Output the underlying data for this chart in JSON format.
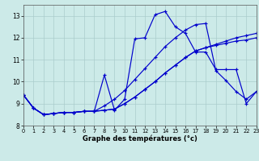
{
  "xlabel": "Graphe des températures (°c)",
  "background_color": "#cceae8",
  "grid_color": "#aacccc",
  "line_color": "#0000cc",
  "xlim": [
    0,
    23
  ],
  "ylim": [
    8.0,
    13.5
  ],
  "yticks": [
    8,
    9,
    10,
    11,
    12,
    13
  ],
  "xticks": [
    0,
    1,
    2,
    3,
    4,
    5,
    6,
    7,
    8,
    9,
    10,
    11,
    12,
    13,
    14,
    15,
    16,
    17,
    18,
    19,
    20,
    21,
    22,
    23
  ],
  "series": [
    {
      "x": [
        0,
        1,
        2,
        3,
        4,
        5,
        6,
        7,
        8,
        9,
        10,
        11,
        12,
        13,
        14,
        15,
        16,
        17,
        18,
        19,
        20,
        21,
        22,
        23
      ],
      "y": [
        9.4,
        8.8,
        8.5,
        8.55,
        8.6,
        8.6,
        8.65,
        8.65,
        8.7,
        8.75,
        9.0,
        9.3,
        9.65,
        10.0,
        10.4,
        10.75,
        11.1,
        11.4,
        11.55,
        11.65,
        11.75,
        11.85,
        11.9,
        12.0
      ]
    },
    {
      "x": [
        0,
        1,
        2,
        3,
        4,
        5,
        6,
        7,
        8,
        9,
        10,
        11,
        12,
        13,
        14,
        15,
        16,
        17,
        18,
        19,
        20,
        21,
        22,
        23
      ],
      "y": [
        9.4,
        8.8,
        8.5,
        8.55,
        8.6,
        8.6,
        8.65,
        8.65,
        8.7,
        8.75,
        9.0,
        9.3,
        9.65,
        10.0,
        10.4,
        10.75,
        11.1,
        11.4,
        11.55,
        11.7,
        11.85,
        12.0,
        12.1,
        12.2
      ]
    },
    {
      "x": [
        0,
        1,
        2,
        3,
        4,
        5,
        6,
        7,
        8,
        9,
        10,
        11,
        12,
        13,
        14,
        15,
        16,
        17,
        18,
        19,
        20,
        21,
        22,
        23
      ],
      "y": [
        9.4,
        8.8,
        8.5,
        8.55,
        8.6,
        8.6,
        8.65,
        8.65,
        8.9,
        9.2,
        9.6,
        10.1,
        10.6,
        11.1,
        11.6,
        12.0,
        12.35,
        12.6,
        12.65,
        10.5,
        10.05,
        9.55,
        9.2,
        9.55
      ]
    },
    {
      "x": [
        0,
        1,
        2,
        3,
        4,
        5,
        6,
        7,
        8,
        9,
        10,
        11,
        12,
        13,
        14,
        15,
        16,
        17,
        18,
        19,
        20,
        21,
        22,
        23
      ],
      "y": [
        9.4,
        8.8,
        8.5,
        8.55,
        8.6,
        8.6,
        8.65,
        8.65,
        10.3,
        8.7,
        9.2,
        11.95,
        12.0,
        13.05,
        13.2,
        12.5,
        12.2,
        11.35,
        11.35,
        10.55,
        10.55,
        10.55,
        9.0,
        9.55
      ]
    }
  ]
}
